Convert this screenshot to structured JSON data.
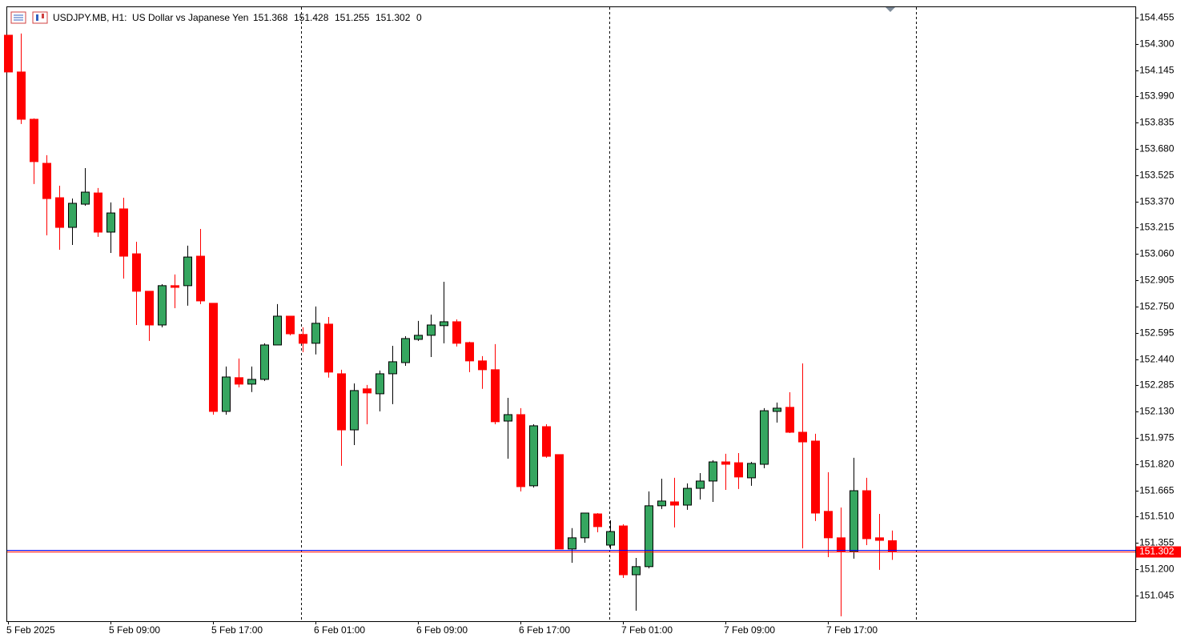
{
  "chart_data": {
    "type": "candlestick",
    "header": {
      "symbol": "USDJPY.MB, H1:",
      "description": "US Dollar vs Japanese Yen",
      "values": [
        151.368,
        151.428,
        151.255,
        151.302,
        0
      ]
    },
    "categories": [
      "5 Feb 2025",
      null,
      null,
      null,
      null,
      null,
      null,
      null,
      "5 Feb 09:00",
      null,
      null,
      null,
      null,
      null,
      null,
      null,
      "5 Feb 17:00",
      null,
      null,
      null,
      null,
      null,
      null,
      null,
      "6 Feb 01:00",
      null,
      null,
      null,
      null,
      null,
      null,
      null,
      "6 Feb 09:00",
      null,
      null,
      null,
      null,
      null,
      null,
      null,
      "6 Feb 17:00",
      null,
      null,
      null,
      null,
      null,
      null,
      null,
      "7 Feb 01:00",
      null,
      null,
      null,
      null,
      null,
      null,
      null,
      "7 Feb 09:00",
      null,
      null,
      null,
      null,
      null,
      null,
      null,
      "7 Feb 17:00",
      null,
      null,
      null,
      null,
      null
    ],
    "series": [
      {
        "open": [
          154.351,
          154.134,
          153.855,
          153.595,
          153.392,
          153.217,
          153.354,
          153.42,
          153.189,
          153.326,
          153.061,
          152.84,
          152.641,
          152.873,
          152.873,
          153.047,
          152.769,
          152.131,
          152.33,
          152.292,
          152.32,
          152.523,
          152.693,
          152.585,
          152.533,
          152.646,
          152.353,
          152.022,
          152.264,
          152.235,
          152.353,
          152.419,
          152.556,
          152.58,
          152.637,
          152.66,
          152.537,
          152.429,
          152.377,
          152.074,
          152.112,
          151.692,
          152.041,
          151.876,
          151.319,
          151.385,
          151.526,
          151.342,
          151.455,
          151.167,
          151.215,
          151.574,
          151.597,
          151.578,
          151.677,
          151.72,
          151.833,
          151.828,
          151.739,
          151.819,
          152.131,
          152.155,
          152.008,
          151.956,
          151.541,
          151.385,
          151.304,
          151.663,
          151.385,
          151.368
        ],
        "high": [
          154.351,
          154.361,
          153.86,
          153.643,
          153.463,
          153.387,
          153.567,
          153.449,
          153.364,
          153.392,
          153.132,
          152.84,
          152.882,
          152.939,
          153.109,
          153.208,
          152.769,
          152.396,
          152.443,
          152.396,
          152.533,
          152.764,
          152.693,
          152.627,
          152.75,
          152.688,
          152.377,
          152.296,
          152.287,
          152.372,
          152.518,
          152.575,
          152.665,
          152.702,
          152.896,
          152.674,
          152.542,
          152.457,
          152.528,
          152.211,
          152.15,
          152.055,
          152.055,
          151.876,
          151.442,
          151.531,
          151.531,
          151.489,
          151.465,
          151.266,
          151.659,
          151.734,
          151.739,
          151.706,
          151.767,
          151.843,
          151.881,
          151.885,
          151.833,
          152.15,
          152.183,
          152.244,
          152.414,
          151.999,
          151.772,
          151.564,
          151.857,
          151.739,
          151.526,
          151.428
        ],
        "low": [
          154.134,
          153.827,
          153.473,
          153.17,
          153.085,
          153.113,
          153.345,
          153.161,
          153.066,
          152.915,
          152.641,
          152.547,
          152.627,
          152.74,
          152.755,
          152.764,
          152.112,
          152.112,
          152.273,
          152.245,
          152.311,
          152.523,
          152.58,
          152.481,
          152.467,
          152.33,
          151.81,
          151.932,
          152.055,
          152.131,
          152.174,
          152.4,
          152.547,
          152.452,
          152.533,
          152.514,
          152.363,
          152.264,
          152.055,
          151.852,
          151.659,
          151.682,
          151.857,
          151.319,
          151.238,
          151.356,
          151.418,
          151.319,
          151.148,
          150.955,
          151.205,
          151.555,
          151.446,
          151.55,
          151.611,
          151.597,
          151.668,
          151.673,
          151.692,
          151.796,
          152.065,
          152.003,
          151.323,
          151.484,
          151.271,
          150.922,
          151.262,
          151.342,
          151.196,
          151.255
        ],
        "close": [
          154.134,
          153.855,
          153.605,
          153.387,
          153.217,
          153.359,
          153.425,
          153.189,
          153.302,
          153.047,
          152.84,
          152.641,
          152.873,
          152.863,
          153.042,
          152.783,
          152.131,
          152.334,
          152.292,
          152.32,
          152.523,
          152.693,
          152.589,
          152.533,
          152.651,
          152.363,
          152.022,
          152.254,
          152.24,
          152.353,
          152.424,
          152.561,
          152.58,
          152.641,
          152.66,
          152.533,
          152.429,
          152.377,
          152.07,
          152.112,
          151.687,
          152.046,
          151.866,
          151.319,
          151.385,
          151.531,
          151.451,
          151.422,
          151.167,
          151.215,
          151.574,
          151.602,
          151.578,
          151.677,
          151.72,
          151.833,
          151.819,
          151.744,
          151.824,
          152.135,
          152.15,
          152.008,
          151.951,
          151.531,
          151.385,
          151.304,
          151.663,
          151.38,
          151.37,
          151.302
        ]
      }
    ],
    "up_color": "#36a660",
    "down_color": "#ff0000",
    "ylim": [
      150.893,
      154.521
    ],
    "yticks": [
      154.455,
      {
        "value": 154.3,
        "label": "154.300"
      },
      154.145,
      {
        "value": 153.99,
        "label": "153.990"
      },
      153.835,
      {
        "value": 153.68,
        "label": "153.680"
      },
      153.525,
      {
        "value": 153.37,
        "label": "153.370"
      },
      153.215,
      {
        "value": 153.06,
        "label": "153.060"
      },
      152.905,
      {
        "value": 152.75,
        "label": "152.750"
      },
      152.595,
      {
        "value": 152.44,
        "label": "152.440"
      },
      152.285,
      {
        "value": 152.13,
        "label": "152.130"
      },
      151.975,
      {
        "value": 151.82,
        "label": "151.820"
      },
      151.665,
      {
        "value": 151.51,
        "label": "151.510"
      },
      151.355,
      {
        "value": 151.2,
        "label": "151.200"
      },
      151.045
    ],
    "grid": false,
    "price_lines": [
      {
        "value": 151.312,
        "color": "#0000ff"
      },
      {
        "value": 151.302,
        "color": "#ff0000",
        "label": true
      }
    ]
  }
}
